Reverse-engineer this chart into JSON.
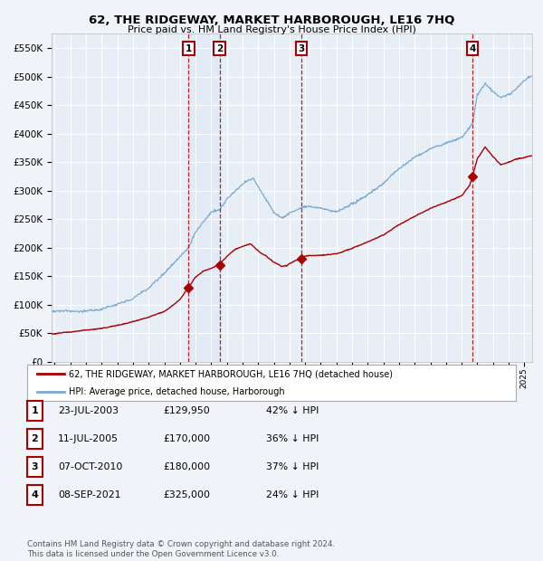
{
  "title": "62, THE RIDGEWAY, MARKET HARBOROUGH, LE16 7HQ",
  "subtitle": "Price paid vs. HM Land Registry's House Price Index (HPI)",
  "background_color": "#f0f4f8",
  "plot_bg_color": "#e8eef5",
  "ylim": [
    0,
    575000
  ],
  "yticks": [
    0,
    50000,
    100000,
    150000,
    200000,
    250000,
    300000,
    350000,
    400000,
    450000,
    500000,
    550000
  ],
  "xlim_start": 1994.8,
  "xlim_end": 2025.5,
  "sale_dates_dec": [
    2003.55,
    2005.53,
    2010.77,
    2021.69
  ],
  "sale_prices": [
    129950,
    170000,
    180000,
    325000
  ],
  "sale_labels": [
    "1",
    "2",
    "3",
    "4"
  ],
  "sale_color": "#aa0000",
  "hpi_color": "#7aaad0",
  "shade_color": "#d8e8f5",
  "legend_entries": [
    "62, THE RIDGEWAY, MARKET HARBOROUGH, LE16 7HQ (detached house)",
    "HPI: Average price, detached house, Harborough"
  ],
  "table_data": [
    [
      "1",
      "23-JUL-2003",
      "£129,950",
      "42% ↓ HPI"
    ],
    [
      "2",
      "11-JUL-2005",
      "£170,000",
      "36% ↓ HPI"
    ],
    [
      "3",
      "07-OCT-2010",
      "£180,000",
      "37% ↓ HPI"
    ],
    [
      "4",
      "08-SEP-2021",
      "£325,000",
      "24% ↓ HPI"
    ]
  ],
  "footer": "Contains HM Land Registry data © Crown copyright and database right 2024.\nThis data is licensed under the Open Government Licence v3.0."
}
